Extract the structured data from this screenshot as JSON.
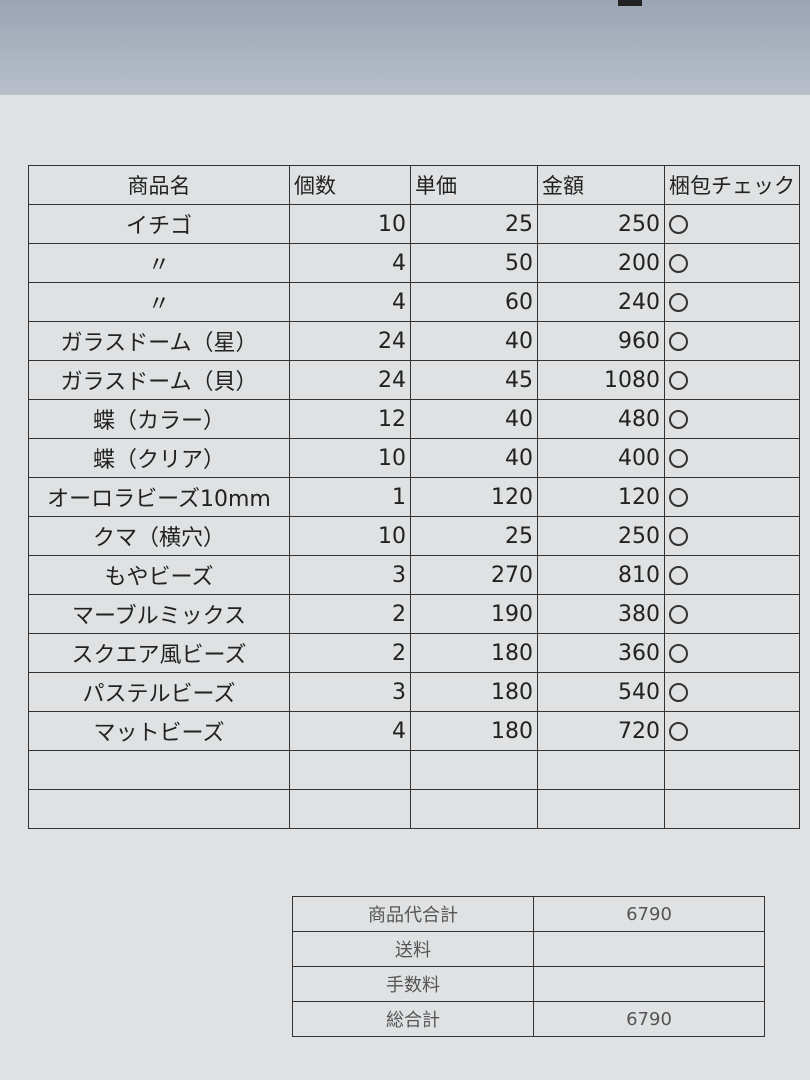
{
  "table": {
    "headers": [
      "商品名",
      "個数",
      "単価",
      "金額",
      "梱包チェック"
    ],
    "rows": [
      {
        "name": "イチゴ",
        "qty": "10",
        "price": "25",
        "amount": "250",
        "check": "○"
      },
      {
        "name": "〃",
        "qty": "4",
        "price": "50",
        "amount": "200",
        "check": "○"
      },
      {
        "name": "〃",
        "qty": "4",
        "price": "60",
        "amount": "240",
        "check": "○"
      },
      {
        "name": "ガラスドーム（星）",
        "qty": "24",
        "price": "40",
        "amount": "960",
        "check": "○"
      },
      {
        "name": "ガラスドーム（貝）",
        "qty": "24",
        "price": "45",
        "amount": "1080",
        "check": "○"
      },
      {
        "name": "蝶（カラー）",
        "qty": "12",
        "price": "40",
        "amount": "480",
        "check": "○"
      },
      {
        "name": "蝶（クリア）",
        "qty": "10",
        "price": "40",
        "amount": "400",
        "check": "○"
      },
      {
        "name": "オーロラビーズ10mm",
        "qty": "1",
        "price": "120",
        "amount": "120",
        "check": "○"
      },
      {
        "name": "クマ（横穴）",
        "qty": "10",
        "price": "25",
        "amount": "250",
        "check": "○"
      },
      {
        "name": "もやビーズ",
        "qty": "3",
        "price": "270",
        "amount": "810",
        "check": "○"
      },
      {
        "name": "マーブルミックス",
        "qty": "2",
        "price": "190",
        "amount": "380",
        "check": "○"
      },
      {
        "name": "スクエア風ビーズ",
        "qty": "2",
        "price": "180",
        "amount": "360",
        "check": "○"
      },
      {
        "name": "パステルビーズ",
        "qty": "3",
        "price": "180",
        "amount": "540",
        "check": "○"
      },
      {
        "name": "マットビーズ",
        "qty": "4",
        "price": "180",
        "amount": "720",
        "check": "○"
      }
    ],
    "empty_rows": 2
  },
  "summary": [
    {
      "label": "商品代合計",
      "value": "6790"
    },
    {
      "label": "送料",
      "value": ""
    },
    {
      "label": "手数料",
      "value": ""
    },
    {
      "label": "総合計",
      "value": "6790"
    }
  ]
}
